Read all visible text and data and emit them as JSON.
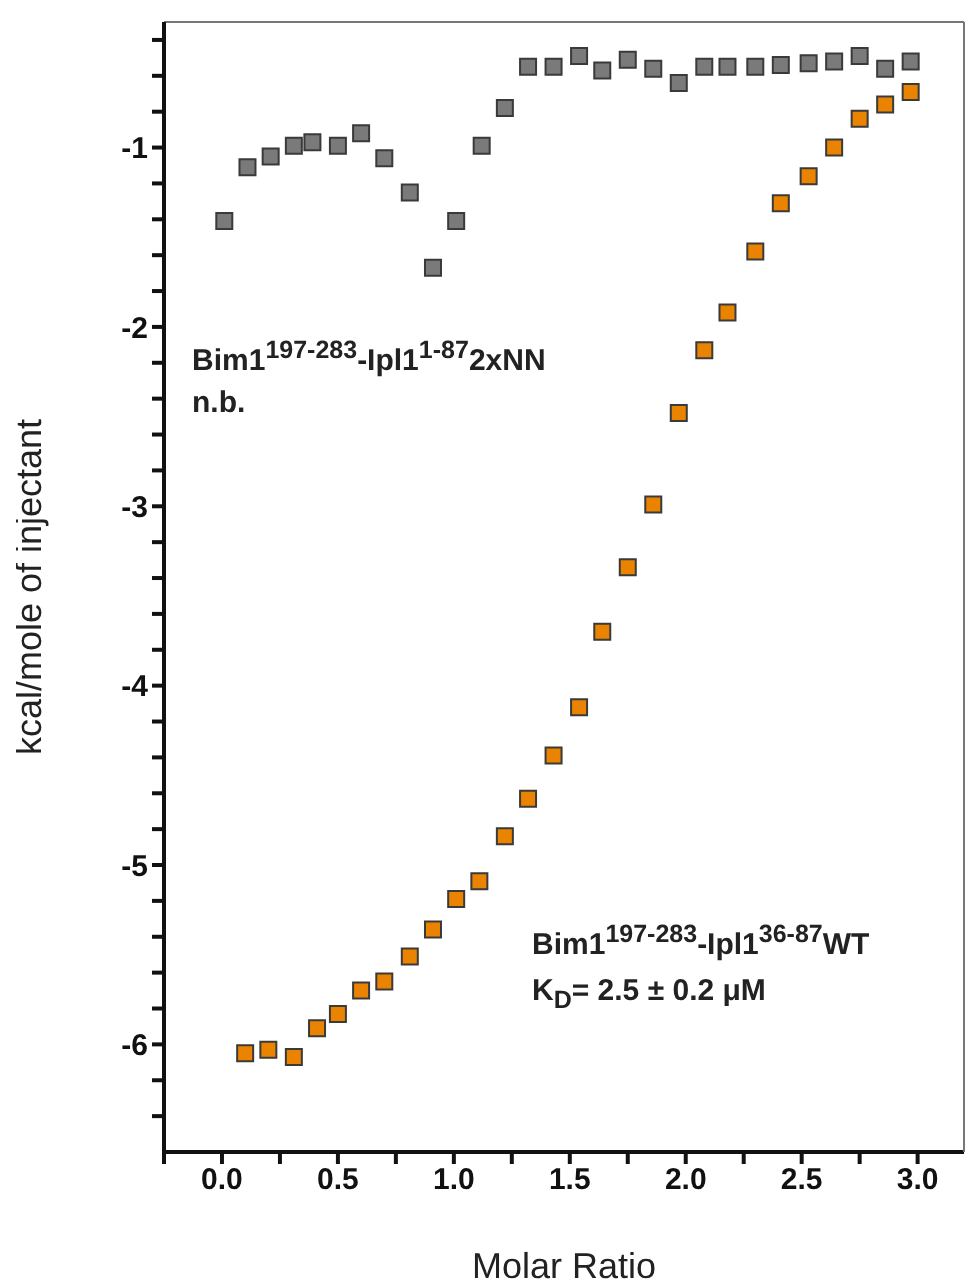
{
  "chart_data": {
    "type": "scatter",
    "xlabel": "Molar Ratio",
    "ylabel": "kcal/mole of injectant",
    "annotations": [
      "Bim1$^{197-283}$-Ipl1$^{1-87}$2xNN",
      "n.b.",
      "Bim1$^{197-283}$-Ipl1$^{36-87}$WT",
      "K$_{D}$= 2.5 ± 0.2 μM"
    ],
    "series": [
      {
        "color": "#7a7a7a",
        "x": [
          0.01,
          0.11,
          0.21,
          0.31,
          0.39,
          0.5,
          0.6,
          0.7,
          0.81,
          0.91,
          1.01,
          1.12,
          1.22,
          1.32,
          1.43,
          1.54,
          1.64,
          1.75,
          1.86,
          1.97,
          2.08,
          2.18,
          2.3,
          2.41,
          2.53,
          2.64,
          2.75,
          2.86,
          2.97
        ],
        "values": [
          -1.41,
          -1.11,
          -1.05,
          -0.99,
          -0.97,
          -0.99,
          -0.92,
          -1.06,
          -1.25,
          -1.67,
          -1.41,
          -0.99,
          -0.78,
          -0.55,
          -0.55,
          -0.49,
          -0.57,
          -0.51,
          -0.56,
          -0.64,
          -0.55,
          -0.55,
          -0.55,
          -0.54,
          -0.53,
          -0.52,
          -0.49,
          -0.56,
          -0.52
        ]
      },
      {
        "color": "#e98300",
        "x": [
          0.1,
          0.2,
          0.31,
          0.41,
          0.5,
          0.6,
          0.7,
          0.81,
          0.91,
          1.01,
          1.11,
          1.22,
          1.32,
          1.43,
          1.54,
          1.64,
          1.75,
          1.86,
          1.97,
          2.08,
          2.18,
          2.3,
          2.41,
          2.53,
          2.64,
          2.75,
          2.86,
          2.97
        ],
        "values": [
          -6.05,
          -6.03,
          -6.07,
          -5.91,
          -5.83,
          -5.7,
          -5.65,
          -5.51,
          -5.36,
          -5.19,
          -5.09,
          -4.84,
          -4.63,
          -4.39,
          -4.12,
          -3.7,
          -3.34,
          -2.99,
          -2.48,
          -2.13,
          -1.92,
          -1.58,
          -1.31,
          -1.16,
          -1.0,
          -0.84,
          -0.76,
          -0.69
        ]
      }
    ],
    "marker": "square",
    "xlim": [
      -0.25,
      3.2
    ],
    "ylim": [
      -6.6,
      -0.3
    ],
    "xticks": [
      {
        "value": -0.25,
        "label": null
      },
      {
        "value": 0,
        "label": "0.0"
      },
      {
        "value": 0.25,
        "label": null
      },
      {
        "value": 0.5,
        "label": "0.5"
      },
      {
        "value": 0.75,
        "label": null
      },
      {
        "value": 1,
        "label": "1.0"
      },
      {
        "value": 1.25,
        "label": null
      },
      {
        "value": 1.5,
        "label": "1.5"
      },
      {
        "value": 1.75,
        "label": null
      },
      {
        "value": 2,
        "label": "2.0"
      },
      {
        "value": 2.25,
        "label": null
      },
      {
        "value": 2.5,
        "label": "2.5"
      },
      {
        "value": 2.75,
        "label": null
      },
      {
        "value": 3,
        "label": "3.0"
      }
    ],
    "yticks": [
      {
        "value": -6.4,
        "label": null
      },
      {
        "value": -6.2,
        "label": null
      },
      -6,
      {
        "value": -5.8,
        "label": null
      },
      {
        "value": -5.6,
        "label": null
      },
      {
        "value": -5.4,
        "label": null
      },
      {
        "value": -5.2,
        "label": null
      },
      -5,
      {
        "value": -4.8,
        "label": null
      },
      {
        "value": -4.6,
        "label": null
      },
      {
        "value": -4.4,
        "label": null
      },
      {
        "value": -4.2,
        "label": null
      },
      -4,
      {
        "value": -3.8,
        "label": null
      },
      {
        "value": -3.6,
        "label": null
      },
      {
        "value": -3.4,
        "label": null
      },
      {
        "value": -3.2,
        "label": null
      },
      -3,
      {
        "value": -2.8,
        "label": null
      },
      {
        "value": -2.6,
        "label": null
      },
      {
        "value": -2.4,
        "label": null
      },
      {
        "value": -2.2,
        "label": null
      },
      -2,
      {
        "value": -1.8,
        "label": null
      },
      {
        "value": -1.6,
        "label": null
      },
      {
        "value": -1.4,
        "label": null
      },
      {
        "value": -1.2,
        "label": null
      },
      -1,
      {
        "value": -0.8,
        "label": null
      },
      {
        "value": -0.6,
        "label": null
      },
      {
        "value": -0.4,
        "label": null
      }
    ]
  }
}
